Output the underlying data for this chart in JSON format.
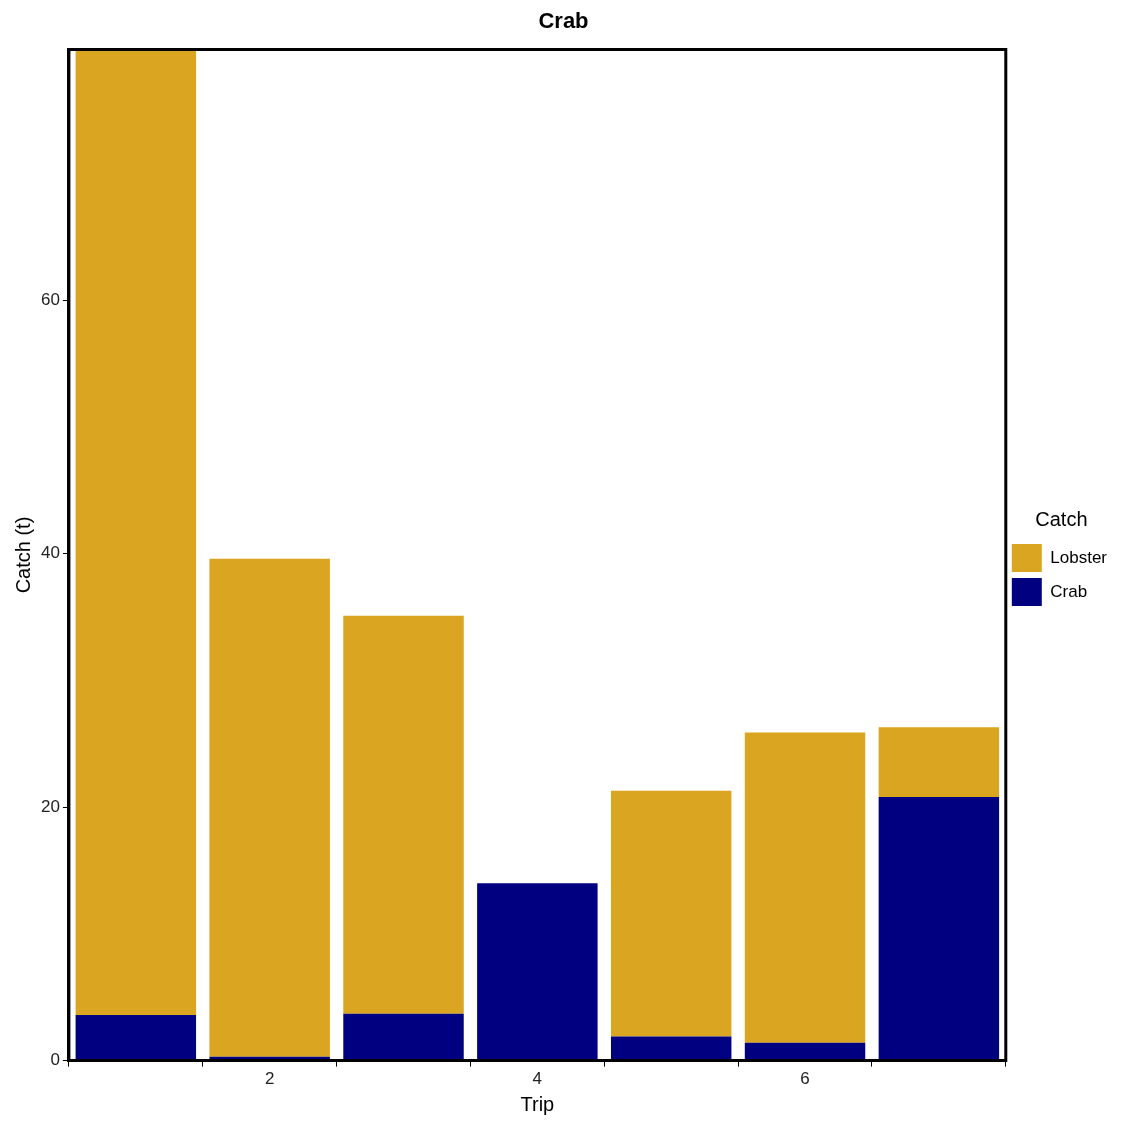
{
  "chart_data": {
    "type": "bar",
    "title": "Crab",
    "xlabel": "Trip",
    "ylabel": "Catch (t)",
    "legend_title": "Catch",
    "categories": [
      null,
      "2",
      null,
      "4",
      null,
      "6",
      null
    ],
    "stacked": true,
    "series": [
      {
        "name": "Crab",
        "color": "#000080",
        "values": [
          3.6,
          0.3,
          3.7,
          14.0,
          1.9,
          1.4,
          20.8
        ]
      },
      {
        "name": "Lobster",
        "color": "#daa520",
        "values": [
          76.2,
          39.3,
          31.4,
          0,
          19.4,
          24.5,
          5.5
        ]
      }
    ],
    "ylim": [
      0,
      79.8
    ],
    "yticks": [
      0,
      20,
      40,
      60
    ],
    "grid": false,
    "legend": "right"
  }
}
